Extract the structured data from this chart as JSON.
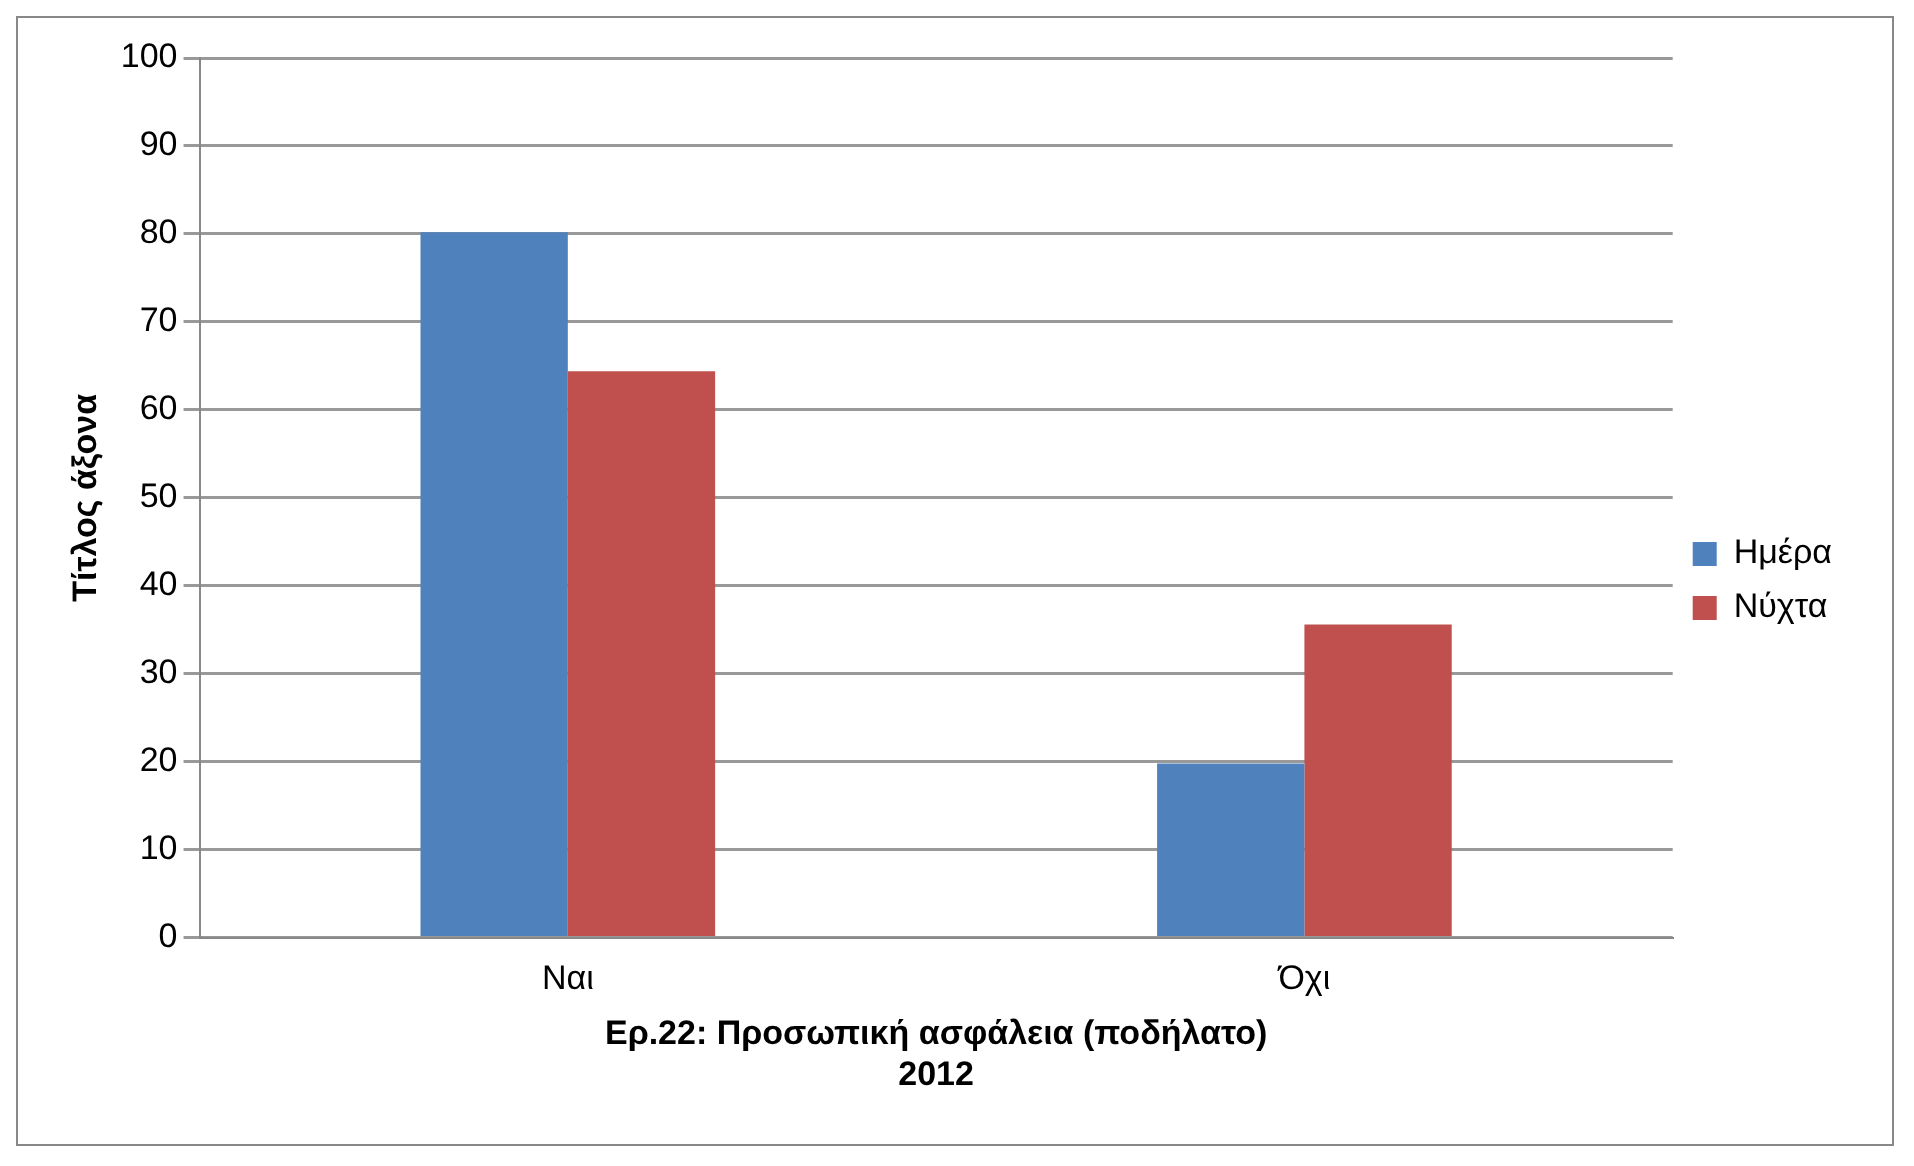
{
  "chart_data": {
    "type": "bar",
    "xlabel": "Ερ.22: Προσωπική ασφάλεια (ποδήλατο)\n2012",
    "ylabel": "Τίτλος άξονα",
    "categories": [
      "Ναι",
      "Όχι"
    ],
    "series": [
      {
        "name": "Ημέρα",
        "color": "#4f81bd",
        "values": [
          80.2,
          19.8
        ]
      },
      {
        "name": "Νύχτα",
        "color": "#c0504d",
        "values": [
          64.4,
          35.6
        ]
      }
    ],
    "ylim": [
      0,
      100
    ],
    "yticks": [
      0,
      10,
      20,
      30,
      40,
      50,
      60,
      70,
      80,
      90,
      100
    ],
    "grid": "y",
    "legend": "right"
  }
}
